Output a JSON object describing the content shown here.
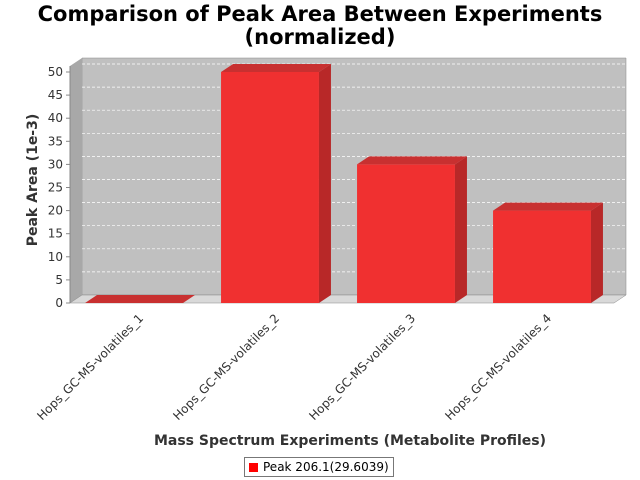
{
  "chart_data": {
    "type": "bar",
    "title_line1": "Comparison of Peak Area Between Experiments",
    "title_line2": "(normalized)",
    "xlabel": "Mass Spectrum Experiments (Metabolite Profiles)",
    "ylabel": "Peak Area (1e-3)",
    "categories": [
      "Hops_GC-MS-volatiles_1",
      "Hops_GC-MS-volatiles_2",
      "Hops_GC-MS-volatiles_3",
      "Hops_GC-MS-volatiles_4"
    ],
    "series": [
      {
        "name": "Peak 206.1(29.6039)",
        "values": [
          0,
          50,
          30,
          20
        ],
        "color": "#ff0000"
      }
    ],
    "ylim": [
      0,
      50
    ],
    "yticks": [
      "0",
      "5",
      "10",
      "15",
      "20",
      "25",
      "30",
      "35",
      "40",
      "45",
      "50"
    ],
    "grid": true,
    "legend_position": "bottom",
    "plot_background": "#c0c0c0"
  }
}
